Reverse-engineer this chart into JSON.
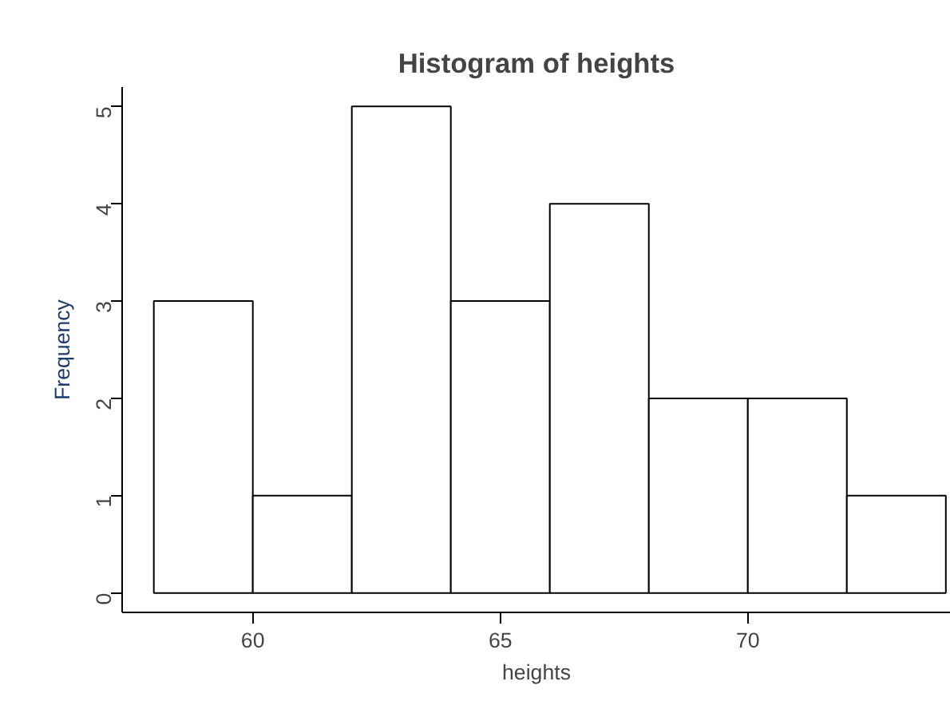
{
  "chart_data": {
    "type": "histogram",
    "title": "Histogram of heights",
    "xlabel": "heights",
    "ylabel": "Frequency",
    "bins": [
      58,
      60,
      62,
      64,
      66,
      68,
      70,
      72,
      74
    ],
    "values": [
      3,
      1,
      5,
      3,
      4,
      2,
      2,
      1
    ],
    "color": "#ffffff",
    "xlim": [
      57.36,
      74.1
    ],
    "ylim": [
      -0.2,
      5.2
    ],
    "xticks": [
      60,
      65,
      70
    ],
    "yticks": [
      0,
      1,
      2,
      3,
      4,
      5
    ],
    "grid": false
  }
}
